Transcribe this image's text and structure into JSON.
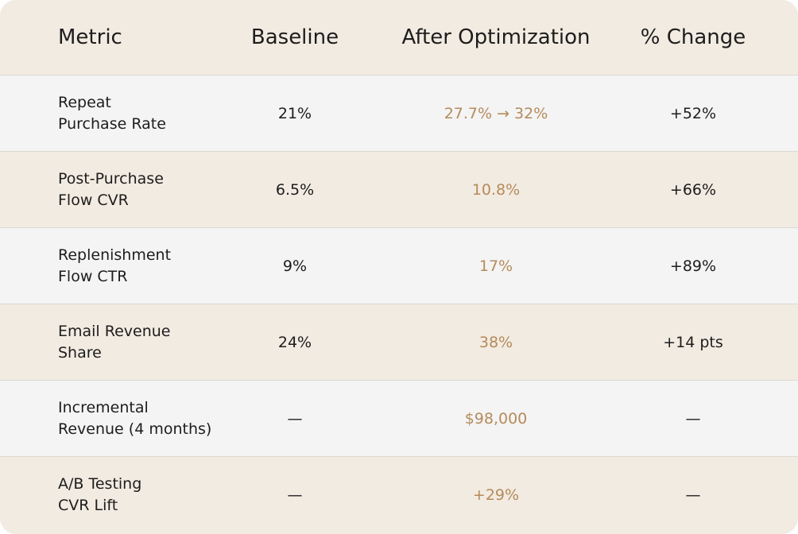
{
  "table": {
    "headers": [
      "Metric",
      "Baseline",
      "After Optimization",
      "% Change"
    ],
    "rows": [
      [
        [
          "Repeat",
          "Purchase Rate"
        ],
        "21%",
        "27.7% → 32%",
        "+52%"
      ],
      [
        [
          "Post-Purchase",
          "Flow CVR"
        ],
        "6.5%",
        "10.8%",
        "+66%"
      ],
      [
        [
          "Replenishment",
          "Flow CTR"
        ],
        "9%",
        "17%",
        "+89%"
      ],
      [
        [
          "Email Revenue",
          "Share"
        ],
        "24%",
        "38%",
        "+14 pts"
      ],
      [
        [
          "Incremental",
          "Revenue (4 months)"
        ],
        "—",
        "$98,000",
        "—"
      ],
      [
        [
          "A/B Testing",
          "CVR Lift"
        ],
        "—",
        "+29%",
        "—"
      ]
    ]
  }
}
